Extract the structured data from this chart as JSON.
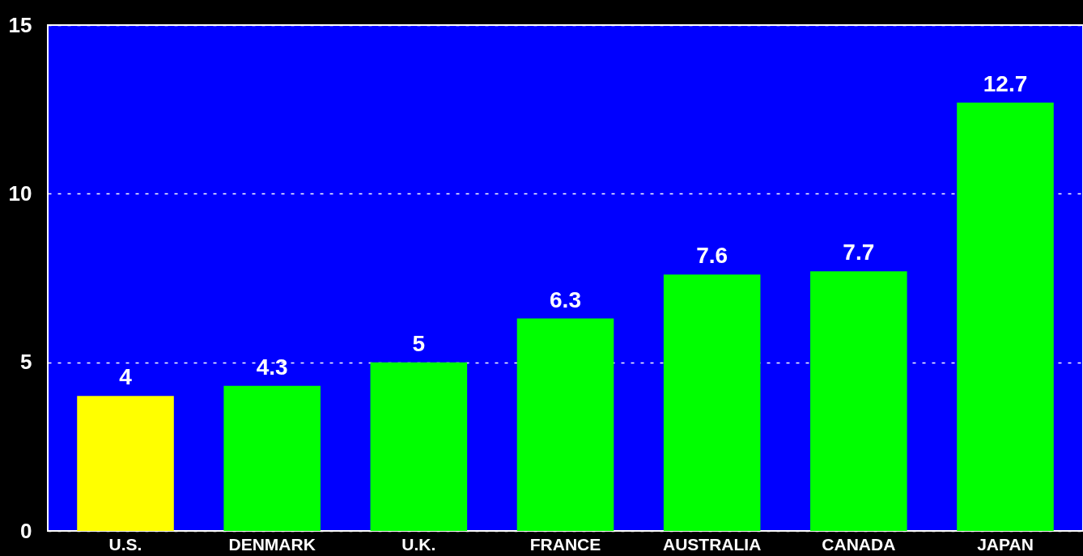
{
  "chart_data": {
    "type": "bar",
    "categories": [
      "U.S.",
      "DENMARK",
      "U.K.",
      "FRANCE",
      "AUSTRALIA",
      "CANADA",
      "JAPAN"
    ],
    "values": [
      4,
      4.3,
      5,
      6.3,
      7.6,
      7.7,
      12.7
    ],
    "colors": [
      "#ffff00",
      "#00ff00",
      "#00ff00",
      "#00ff00",
      "#00ff00",
      "#00ff00",
      "#00ff00"
    ],
    "ylim": [
      0,
      15
    ],
    "yticks": [
      0,
      5,
      10,
      15
    ],
    "grid": "y",
    "data_labels": true
  }
}
